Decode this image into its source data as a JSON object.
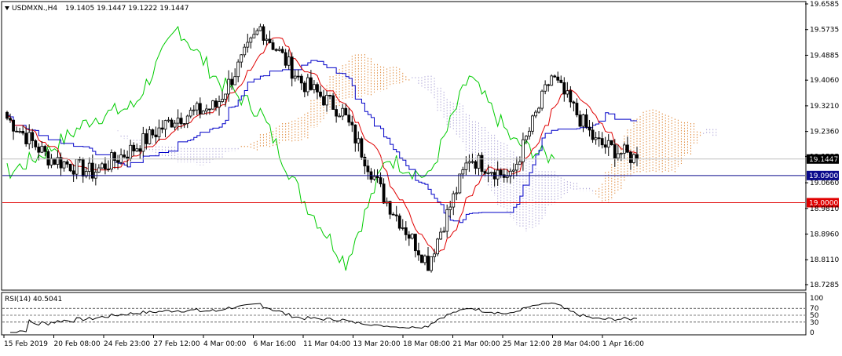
{
  "header": {
    "symbol_label": "USDMXN.,H4",
    "ohlc_text": "19.1405 19.1447 19.1222 19.1447"
  },
  "rsi_panel": {
    "label": "RSI(14) 40.5041",
    "levels": [
      70,
      50,
      30
    ],
    "ticks": [
      "100",
      "70",
      "50",
      "30",
      "0"
    ]
  },
  "price_axis": {
    "ticks": [
      "19.6585",
      "19.5735",
      "19.4885",
      "19.4060",
      "19.3210",
      "19.2360",
      "19.1535",
      "19.0660",
      "18.9810",
      "18.8960",
      "18.8110",
      "18.7285"
    ]
  },
  "horizontal_lines": [
    {
      "name": "support-1",
      "value": 19.09,
      "label": "19.0900",
      "color": "#0a0a8c"
    },
    {
      "name": "support-2",
      "value": 19.0,
      "label": "19.0000",
      "color": "#e00000"
    }
  ],
  "current_price": {
    "value": 19.1447,
    "label": "19.1447"
  },
  "time_axis": {
    "labels": [
      "15 Feb 2019",
      "20 Feb 08:00",
      "24 Feb 23:00",
      "27 Feb 12:00",
      "4 Mar 00:00",
      "6 Mar 16:00",
      "11 Mar 04:00",
      "13 Mar 20:00",
      "18 Mar 08:00",
      "21 Mar 00:00",
      "25 Mar 12:00",
      "28 Mar 04:00",
      "1 Apr 16:00"
    ]
  },
  "colors": {
    "candles": "#000000",
    "tenkan": "#e00000",
    "kijun": "#0000c8",
    "chikou": "#00cc00",
    "cloud_bull": "#e08a3c",
    "cloud_bear": "#b0a8d8",
    "rsi_line": "#000000"
  },
  "chart_data": {
    "type": "candlestick",
    "symbol": "USDMXN.",
    "timeframe": "H4",
    "ylim": [
      18.7285,
      19.6585
    ],
    "close_path": [
      {
        "x": "15 Feb 2019",
        "close": 19.28
      },
      {
        "x": "20 Feb 08:00",
        "close": 19.15
      },
      {
        "x": "24 Feb 23:00",
        "close": 19.1
      },
      {
        "x": "27 Feb 12:00",
        "close": 19.18
      },
      {
        "x": "4 Mar 00:00",
        "close": 19.28
      },
      {
        "x": "6 Mar 16:00",
        "close": 19.32
      },
      {
        "x": "6 Mar 16:00",
        "close": 19.58
      },
      {
        "x": "11 Mar 04:00",
        "close": 19.4
      },
      {
        "x": "13 Mar 20:00",
        "close": 19.3
      },
      {
        "x": "18 Mar 08:00",
        "close": 19.02
      },
      {
        "x": "21 Mar 00:00",
        "close": 18.8
      },
      {
        "x": "21 Mar 00:00",
        "close": 19.15
      },
      {
        "x": "25 Mar 12:00",
        "close": 19.08
      },
      {
        "x": "28 Mar 04:00",
        "close": 19.42
      },
      {
        "x": "1 Apr 16:00",
        "close": 19.2
      },
      {
        "x": "1 Apr 16:00",
        "close": 19.1447
      }
    ],
    "rsi": {
      "period": 14,
      "last": 40.5041,
      "ylim": [
        0,
        100
      ],
      "levels": [
        70,
        50,
        30
      ]
    }
  }
}
